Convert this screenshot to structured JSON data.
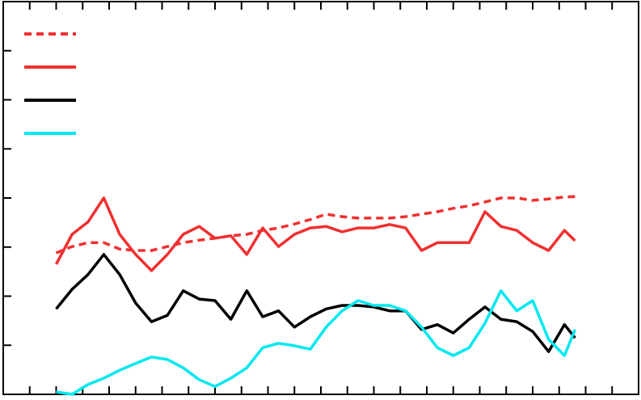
{
  "chart_data": {
    "type": "line",
    "x": [
      2,
      2.6,
      3.2,
      3.8,
      4.4,
      5,
      5.6,
      6.2,
      6.8,
      7.4,
      8,
      8.6,
      9.2,
      9.8,
      10.4,
      11,
      11.6,
      12.2,
      12.8,
      13.4,
      14,
      14.6,
      15.2,
      15.8,
      16.4,
      17,
      17.6,
      18.2,
      18.8,
      19.4,
      20,
      20.6,
      21.2,
      21.6
    ],
    "series": [
      {
        "color": "#f03030",
        "style": "dashed",
        "values": [
          2.88,
          3.01,
          3.09,
          3.09,
          2.96,
          2.93,
          2.93,
          3.01,
          3.09,
          3.14,
          3.18,
          3.23,
          3.26,
          3.34,
          3.39,
          3.47,
          3.56,
          3.67,
          3.62,
          3.59,
          3.59,
          3.59,
          3.62,
          3.67,
          3.72,
          3.79,
          3.84,
          3.92,
          4.0,
          4.0,
          3.95,
          3.98,
          4.02,
          4.03
        ]
      },
      {
        "color": "#f03030",
        "style": "solid",
        "values": [
          2.65,
          3.26,
          3.51,
          4.0,
          3.26,
          2.85,
          2.52,
          2.85,
          3.26,
          3.42,
          3.18,
          3.23,
          2.85,
          3.39,
          3.01,
          3.26,
          3.39,
          3.42,
          3.31,
          3.39,
          3.39,
          3.46,
          3.39,
          2.93,
          3.09,
          3.09,
          3.09,
          3.72,
          3.42,
          3.34,
          3.09,
          2.93,
          3.34,
          3.13
        ]
      },
      {
        "color": "#000000",
        "style": "solid",
        "values": [
          1.74,
          2.14,
          2.44,
          2.85,
          2.44,
          1.86,
          1.48,
          1.61,
          2.11,
          1.94,
          1.91,
          1.53,
          2.11,
          1.58,
          1.7,
          1.37,
          1.58,
          1.74,
          1.81,
          1.81,
          1.78,
          1.7,
          1.7,
          1.32,
          1.42,
          1.25,
          1.53,
          1.78,
          1.53,
          1.48,
          1.28,
          0.87,
          1.42,
          1.15
        ]
      },
      {
        "color": "#00e8f0",
        "style": "solid",
        "values": [
          0.05,
          0.0,
          0.2,
          0.33,
          0.49,
          0.63,
          0.76,
          0.71,
          0.54,
          0.3,
          0.16,
          0.33,
          0.54,
          0.95,
          1.04,
          0.99,
          0.92,
          1.37,
          1.7,
          1.91,
          1.81,
          1.81,
          1.7,
          1.37,
          0.95,
          0.79,
          0.95,
          1.45,
          2.11,
          1.7,
          1.91,
          1.12,
          0.79,
          1.32
        ]
      }
    ],
    "xlim": [
      0,
      24
    ],
    "xticks": [
      1,
      2,
      3,
      4,
      5,
      6,
      7,
      8,
      9,
      10,
      11,
      12,
      13,
      14,
      15,
      16,
      17,
      18,
      19,
      20,
      21,
      22,
      23
    ],
    "ylim": [
      0,
      8
    ],
    "yticks": [
      1,
      2,
      3,
      4,
      5,
      6,
      7
    ],
    "legend": "upper left"
  }
}
